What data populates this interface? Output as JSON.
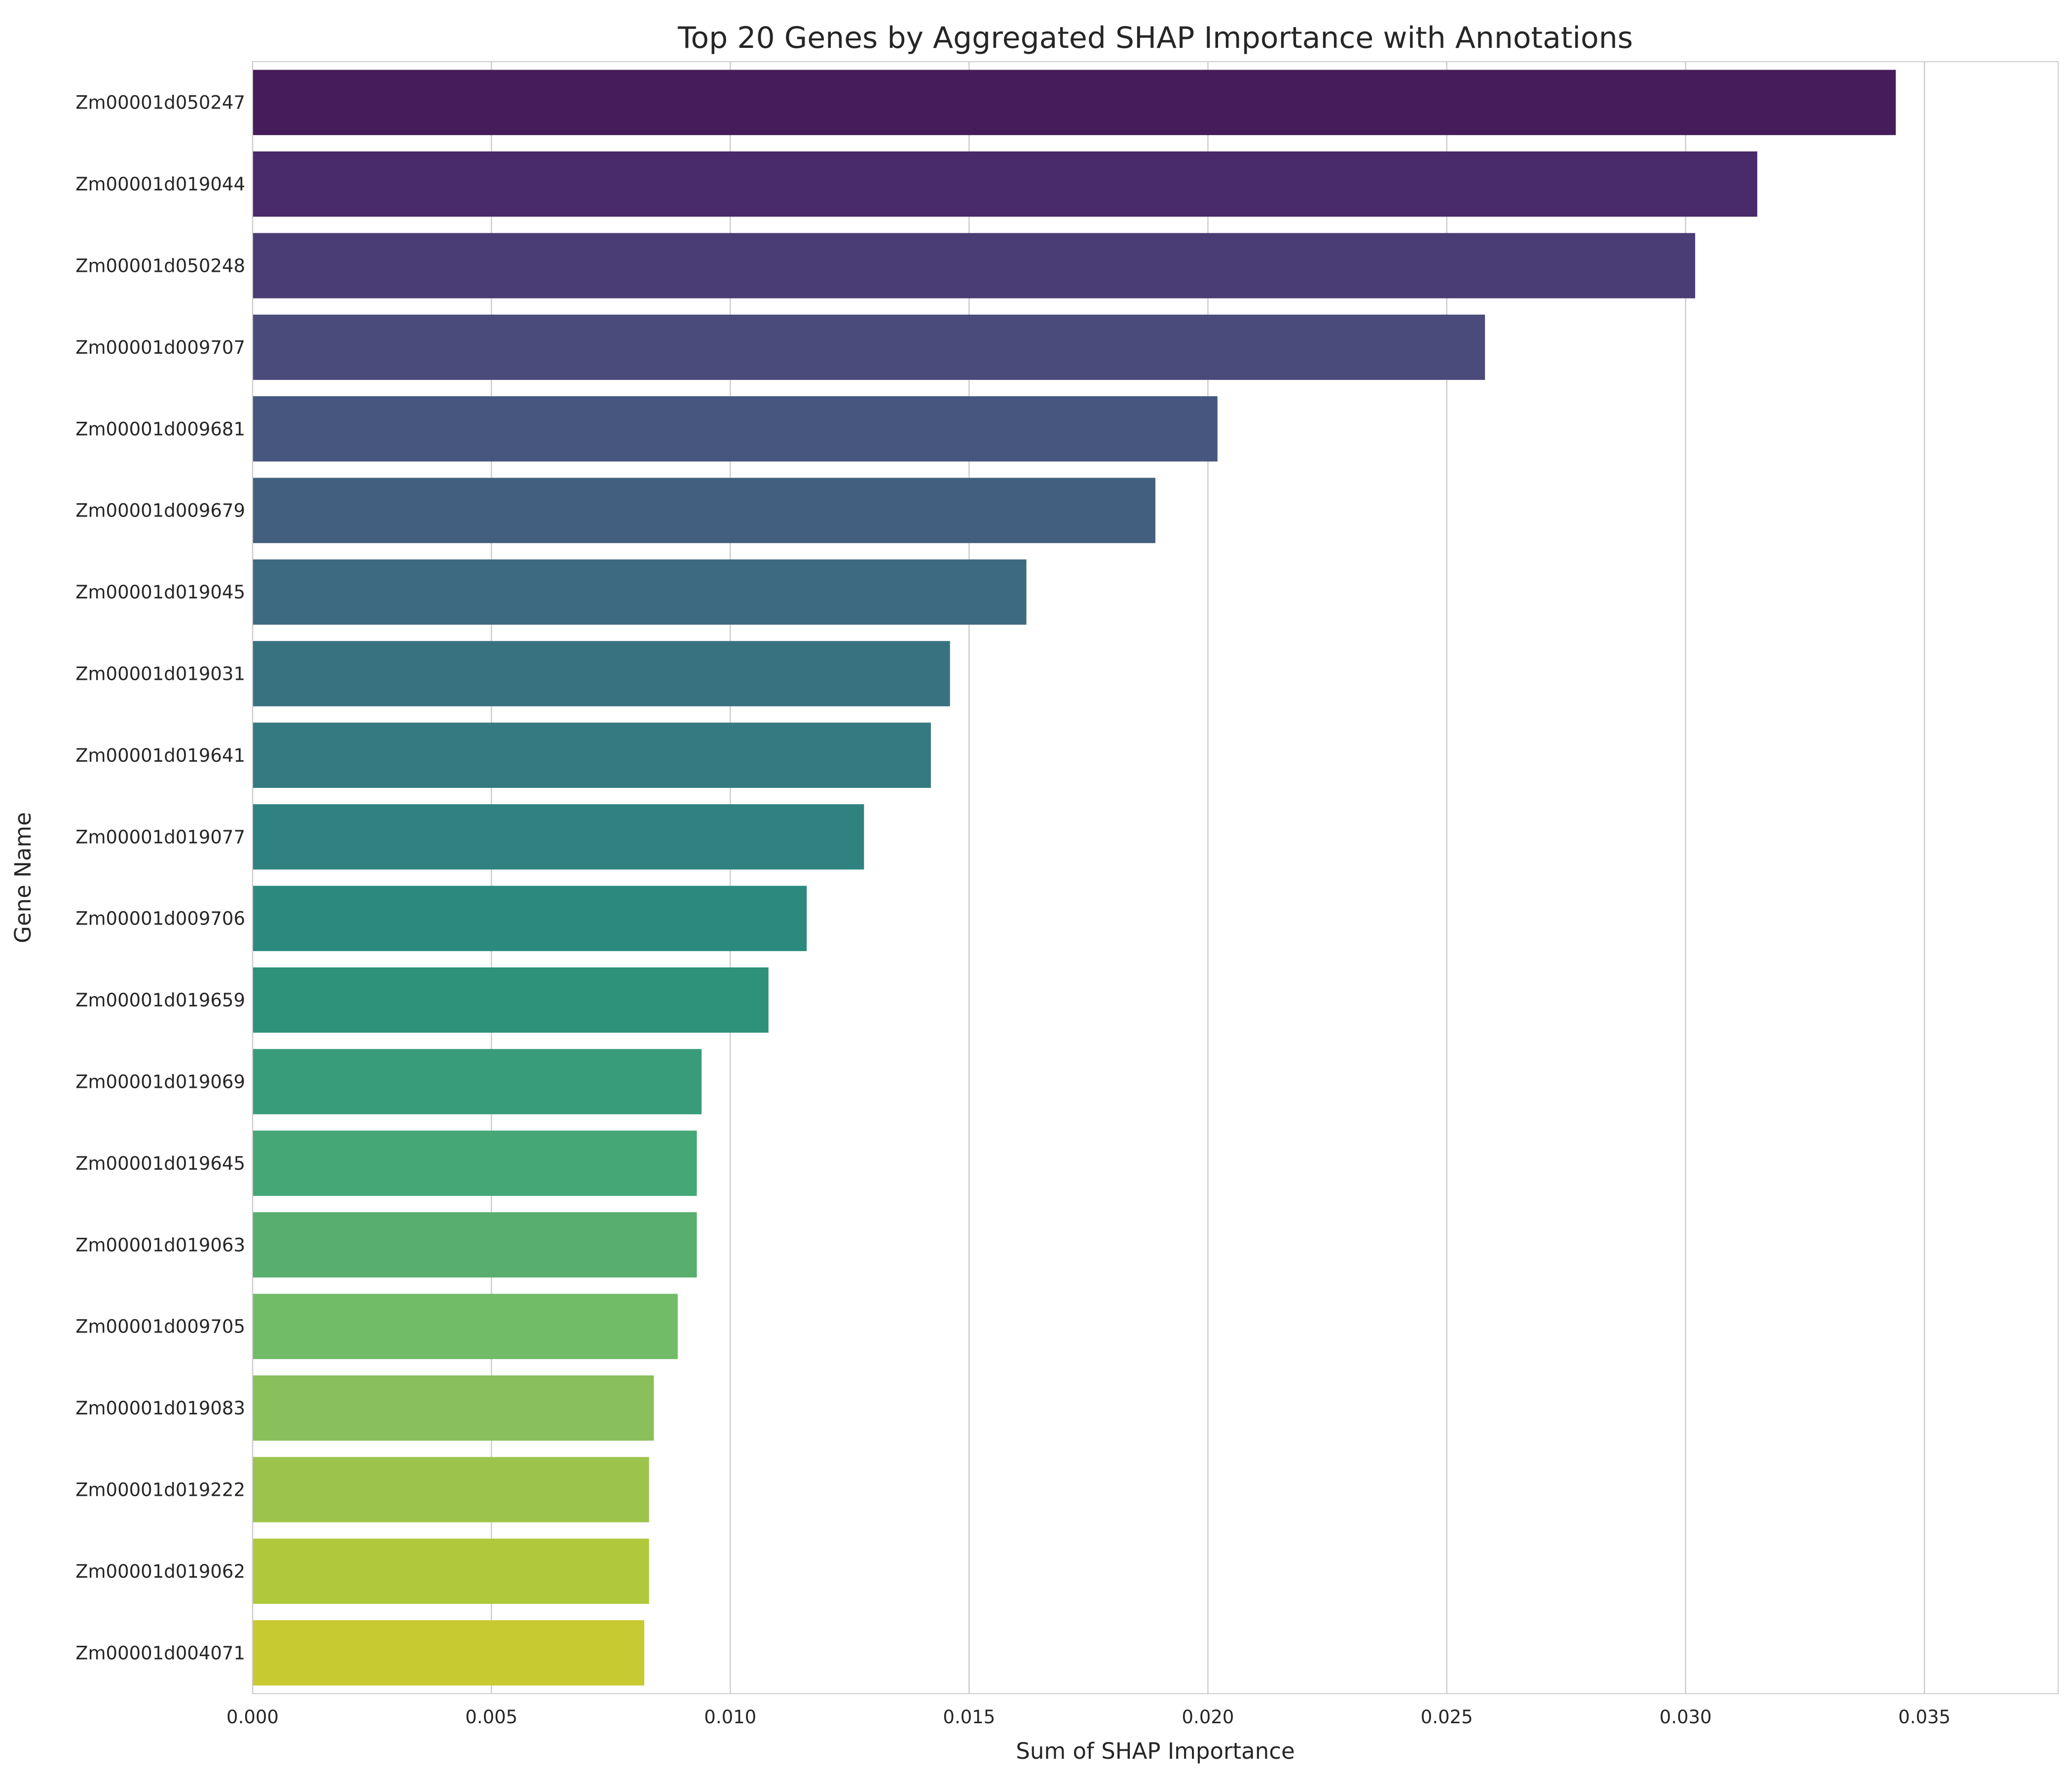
{
  "chart_data": {
    "type": "bar",
    "orientation": "horizontal",
    "title": "Top 20 Genes by Aggregated SHAP Importance with Annotations",
    "xlabel": "Sum of SHAP Importance",
    "ylabel": "Gene Name",
    "xlim": [
      0,
      0.0378
    ],
    "grid": "vertical",
    "legend": "none",
    "xticks": [
      0.0,
      0.005,
      0.01,
      0.015,
      0.02,
      0.025,
      0.03,
      0.035
    ],
    "xtick_labels": [
      "0.000",
      "0.005",
      "0.010",
      "0.015",
      "0.020",
      "0.025",
      "0.030",
      "0.035"
    ],
    "categories": [
      "Zm00001d050247",
      "Zm00001d019044",
      "Zm00001d050248",
      "Zm00001d009707",
      "Zm00001d009681",
      "Zm00001d009679",
      "Zm00001d019045",
      "Zm00001d019031",
      "Zm00001d019641",
      "Zm00001d019077",
      "Zm00001d009706",
      "Zm00001d019659",
      "Zm00001d019069",
      "Zm00001d019645",
      "Zm00001d019063",
      "Zm00001d009705",
      "Zm00001d019083",
      "Zm00001d019222",
      "Zm00001d019062",
      "Zm00001d004071"
    ],
    "values": [
      0.0344,
      0.0315,
      0.0302,
      0.0258,
      0.0202,
      0.0189,
      0.0162,
      0.0146,
      0.0142,
      0.0128,
      0.0116,
      0.0108,
      0.0094,
      0.0093,
      0.0093,
      0.0089,
      0.0084,
      0.0083,
      0.0083,
      0.0082
    ],
    "colors": [
      "#471c5a",
      "#492a6a",
      "#4a3c74",
      "#4a4a7b",
      "#46567f",
      "#425f80",
      "#3d6a81",
      "#387281",
      "#357a81",
      "#2f8280",
      "#2b8a7d",
      "#2e9179",
      "#389c7b",
      "#45a776",
      "#57ae6e",
      "#71bc67",
      "#89c05b",
      "#9cc44c",
      "#b0c83c",
      "#c7ca31"
    ]
  }
}
